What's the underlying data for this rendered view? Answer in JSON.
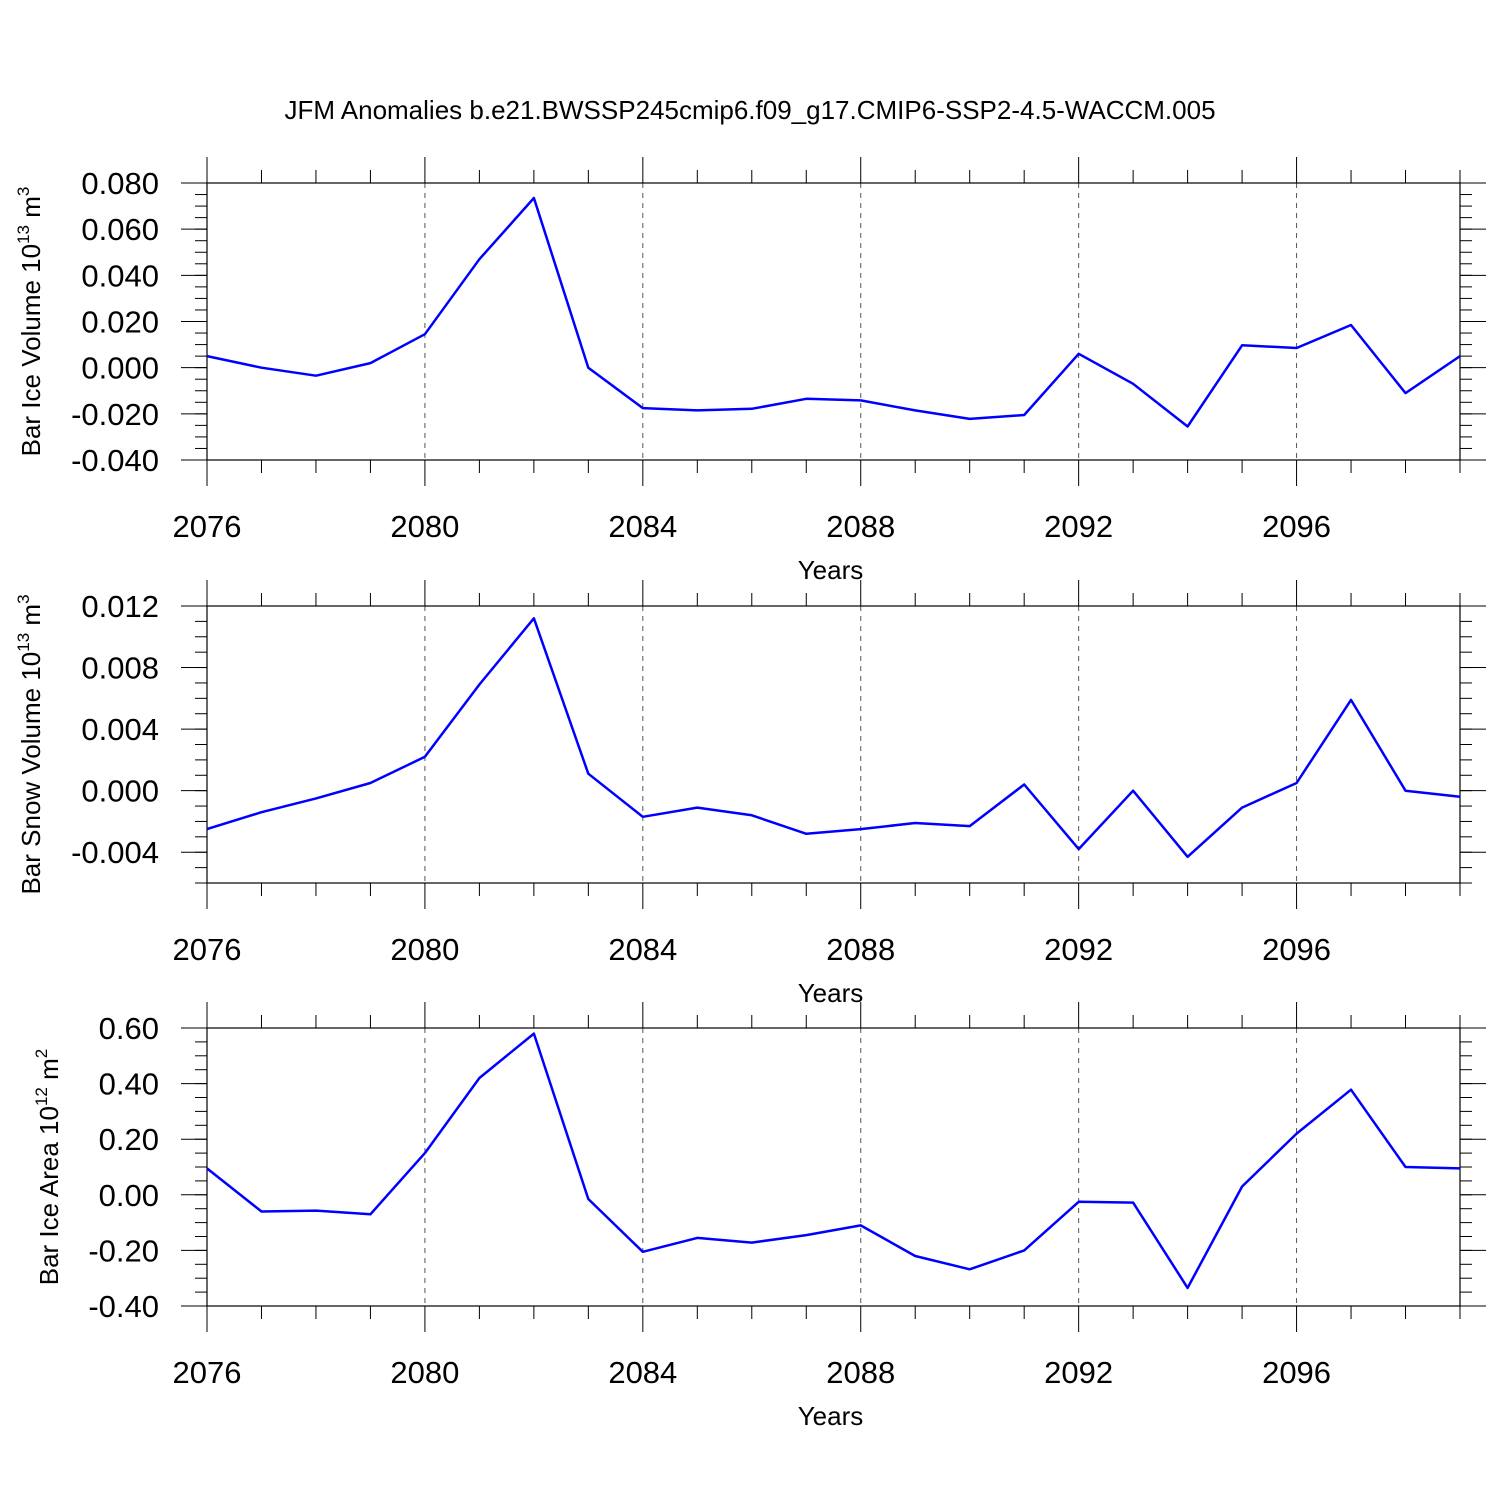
{
  "chart_data": [
    {
      "type": "line",
      "title": "JFM Anomalies b.e21.BWSSP245cmip6.f09_g17.CMIP6-SSP2-4.5-WACCM.005",
      "ylabel": "Bar Ice Volume 10",
      "ylabel_exp": "13",
      "ylabel_unit": "m",
      "ylabel_unit_exp": "3",
      "xlabel": "Years",
      "xlim": [
        2076,
        2099
      ],
      "ylim": [
        -0.04,
        0.08
      ],
      "yticks": [
        -0.04,
        -0.02,
        0.0,
        0.02,
        0.04,
        0.06,
        0.08
      ],
      "ytick_labels": [
        "-0.040",
        "-0.020",
        "0.000",
        "0.020",
        "0.040",
        "0.060",
        "0.080"
      ],
      "yminor_step": 0.005,
      "xticks": [
        2076,
        2080,
        2084,
        2088,
        2092,
        2096
      ],
      "xtick_labels": [
        "2076",
        "2080",
        "2084",
        "2088",
        "2092",
        "2096"
      ],
      "x": [
        2076,
        2077,
        2078,
        2079,
        2080,
        2081,
        2082,
        2083,
        2084,
        2085,
        2086,
        2087,
        2088,
        2089,
        2090,
        2091,
        2092,
        2093,
        2094,
        2095,
        2096,
        2097,
        2098,
        2099
      ],
      "values": [
        0.005,
        0.0,
        -0.0035,
        0.002,
        0.0145,
        0.047,
        0.0735,
        0.0,
        -0.0175,
        -0.0185,
        -0.0178,
        -0.0135,
        -0.0142,
        -0.0185,
        -0.0222,
        -0.0205,
        0.006,
        -0.007,
        -0.0255,
        0.0097,
        0.0085,
        0.0185,
        -0.011,
        0.005
      ]
    },
    {
      "type": "line",
      "ylabel": "Bar Snow Volume 10",
      "ylabel_exp": "13",
      "ylabel_unit": "m",
      "ylabel_unit_exp": "3",
      "xlabel": "Years",
      "xlim": [
        2076,
        2099
      ],
      "ylim": [
        -0.006,
        0.012
      ],
      "yticks": [
        -0.004,
        0.0,
        0.004,
        0.008,
        0.012
      ],
      "ytick_labels": [
        "-0.004",
        "0.000",
        "0.004",
        "0.008",
        "0.012"
      ],
      "yminor_step": 0.001,
      "xticks": [
        2076,
        2080,
        2084,
        2088,
        2092,
        2096
      ],
      "xtick_labels": [
        "2076",
        "2080",
        "2084",
        "2088",
        "2092",
        "2096"
      ],
      "x": [
        2076,
        2077,
        2078,
        2079,
        2080,
        2081,
        2082,
        2083,
        2084,
        2085,
        2086,
        2087,
        2088,
        2089,
        2090,
        2091,
        2092,
        2093,
        2094,
        2095,
        2096,
        2097,
        2098,
        2099
      ],
      "values": [
        -0.0025,
        -0.0014,
        -0.0005,
        0.0005,
        0.0022,
        0.0069,
        0.0112,
        0.0011,
        -0.0017,
        -0.0011,
        -0.0016,
        -0.0028,
        -0.0025,
        -0.0021,
        -0.0023,
        0.0004,
        -0.0038,
        0.0,
        -0.0043,
        -0.0011,
        0.0005,
        0.0059,
        0.0,
        -0.0004
      ]
    },
    {
      "type": "line",
      "ylabel": "Bar Ice Area 10",
      "ylabel_exp": "12",
      "ylabel_unit": "m",
      "ylabel_unit_exp": "2",
      "xlabel": "Years",
      "xlim": [
        2076,
        2099
      ],
      "ylim": [
        -0.4,
        0.6
      ],
      "yticks": [
        -0.4,
        -0.2,
        0.0,
        0.2,
        0.4,
        0.6
      ],
      "ytick_labels": [
        "-0.40",
        "-0.20",
        "0.00",
        "0.20",
        "0.40",
        "0.60"
      ],
      "yminor_step": 0.05,
      "xticks": [
        2076,
        2080,
        2084,
        2088,
        2092,
        2096
      ],
      "xtick_labels": [
        "2076",
        "2080",
        "2084",
        "2088",
        "2092",
        "2096"
      ],
      "x": [
        2076,
        2077,
        2078,
        2079,
        2080,
        2081,
        2082,
        2083,
        2084,
        2085,
        2086,
        2087,
        2088,
        2089,
        2090,
        2091,
        2092,
        2093,
        2094,
        2095,
        2096,
        2097,
        2098,
        2099
      ],
      "values": [
        0.095,
        -0.06,
        -0.057,
        -0.07,
        0.15,
        0.42,
        0.58,
        -0.015,
        -0.205,
        -0.155,
        -0.172,
        -0.145,
        -0.11,
        -0.22,
        -0.268,
        -0.2,
        -0.025,
        -0.028,
        -0.335,
        0.03,
        0.22,
        0.378,
        0.1,
        0.095
      ]
    }
  ],
  "colors": {
    "series": "#0000ff",
    "axis": "#000000",
    "grid": "#555555"
  }
}
